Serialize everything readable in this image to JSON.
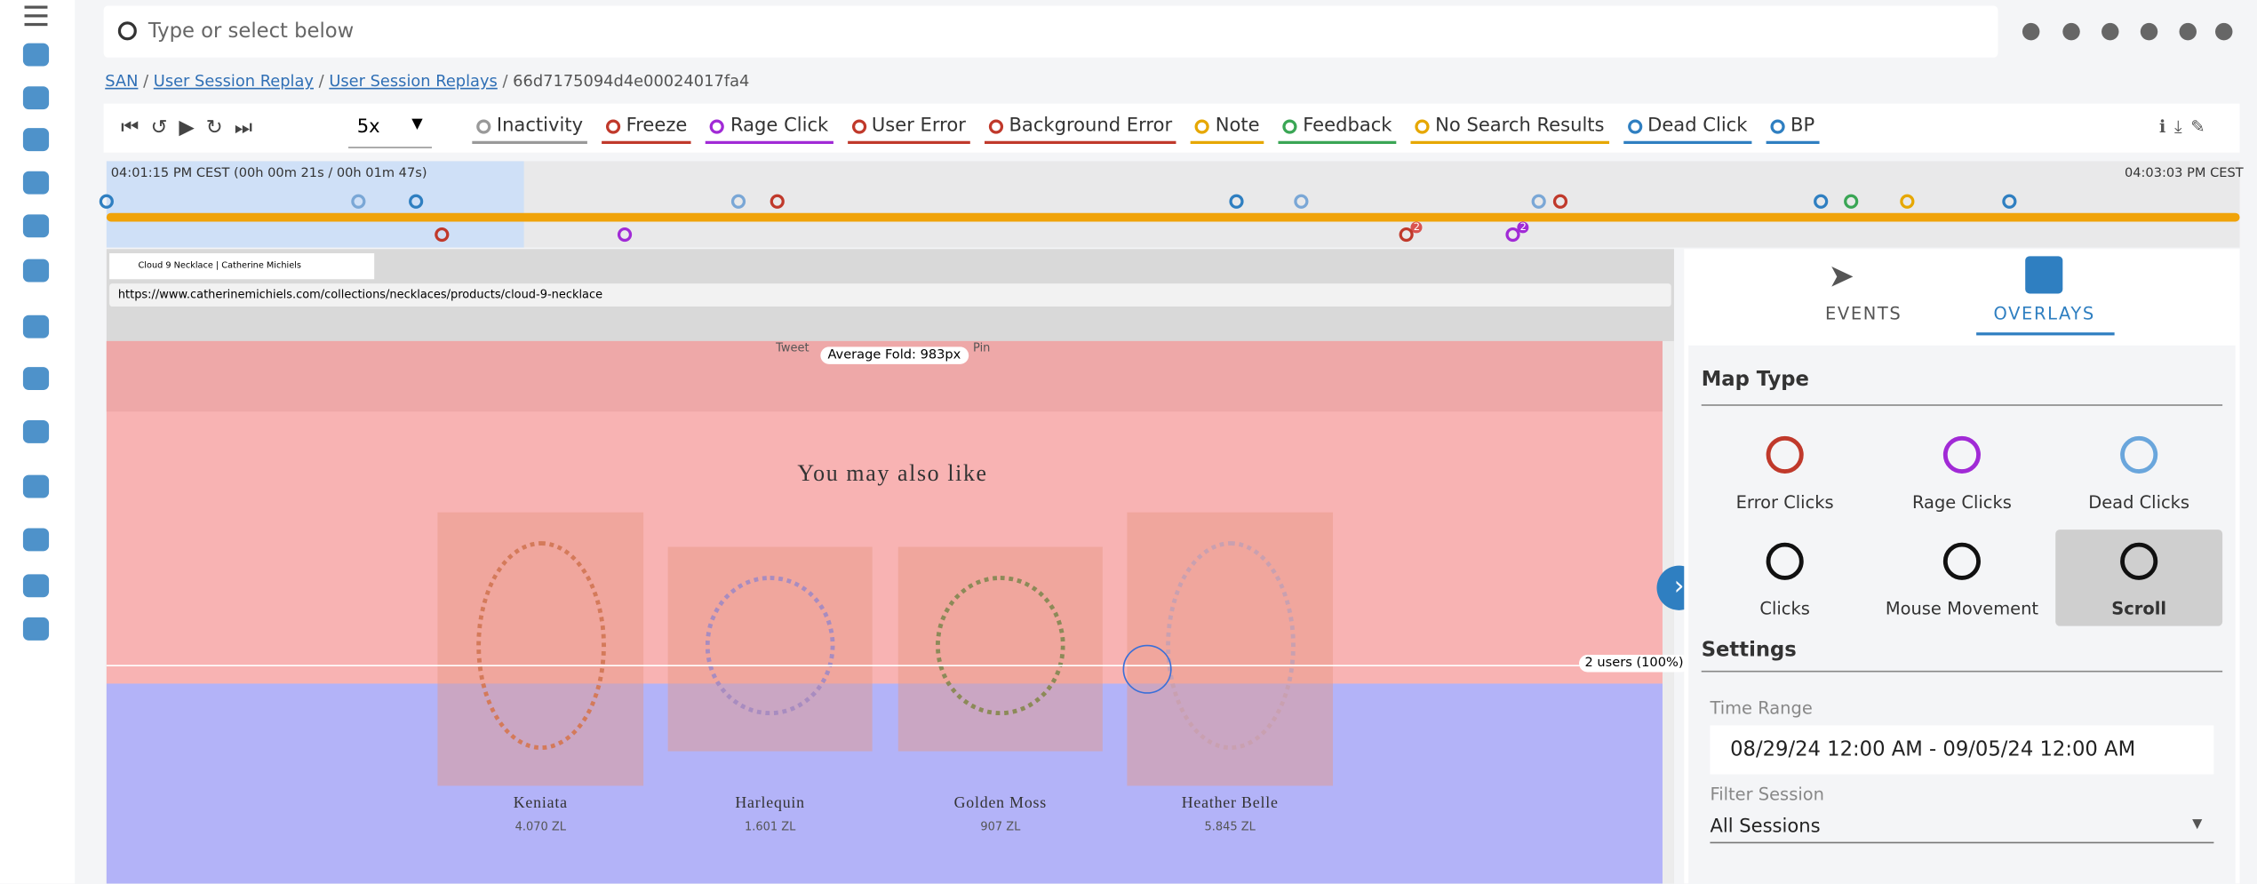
{
  "search": {
    "placeholder": "Type or select below"
  },
  "breadcrumb": [
    "SAN",
    "User Session Replay",
    "User Session Replays",
    "66d7175094d4e00024017fa4"
  ],
  "toolbar": {
    "speed": "5x",
    "filters": [
      "Inactivity",
      "Freeze",
      "Rage Click",
      "User Error",
      "Background Error",
      "Note",
      "Feedback",
      "No Search Results",
      "Dead Click",
      "BP"
    ]
  },
  "timeline": {
    "start": "04:01:15 PM CEST (00h 00m 21s / 00h 01m 47s)",
    "end": "04:03:03 PM CEST",
    "badges": [
      "2",
      "2"
    ]
  },
  "browser": {
    "tab": "Cloud 9 Necklace | Catherine Michiels",
    "url": "https://www.catherinemichiels.com/collections/necklaces/products/cloud-9-necklace"
  },
  "page": {
    "share": [
      "Tweet",
      "Pin"
    ],
    "fold": "Average Fold: 983px",
    "heading": "You may also like",
    "products": [
      {
        "name": "Keniata",
        "price": "4.070 ZL"
      },
      {
        "name": "Harlequin",
        "price": "1.601 ZL"
      },
      {
        "name": "Golden Moss",
        "price": "907 ZL"
      },
      {
        "name": "Heather Belle",
        "price": "5.845 ZL"
      }
    ],
    "users": "2 users (100%)"
  },
  "panel": {
    "tabs": [
      "EVENTS",
      "OVERLAYS"
    ],
    "map_type": "Map Type",
    "types": [
      "Error Clicks",
      "Rage Clicks",
      "Dead Clicks",
      "Clicks",
      "Mouse Movement",
      "Scroll"
    ],
    "settings": "Settings",
    "time_range_label": "Time Range",
    "time_range": "08/29/24 12:00 AM - 09/05/24 12:00 AM",
    "filter_label": "Filter Session",
    "filter": "All Sessions"
  }
}
